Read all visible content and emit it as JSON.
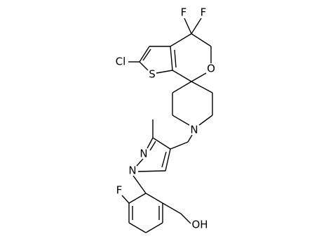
{
  "atoms": [
    {
      "label": "F"
    },
    {
      "label": "F"
    },
    {
      "label": "Cl"
    },
    {
      "label": "S"
    },
    {
      "label": "O"
    },
    {
      "label": "N"
    },
    {
      "label": "N"
    },
    {
      "label": "N"
    },
    {
      "label": "F"
    },
    {
      "label": "OH"
    }
  ]
}
